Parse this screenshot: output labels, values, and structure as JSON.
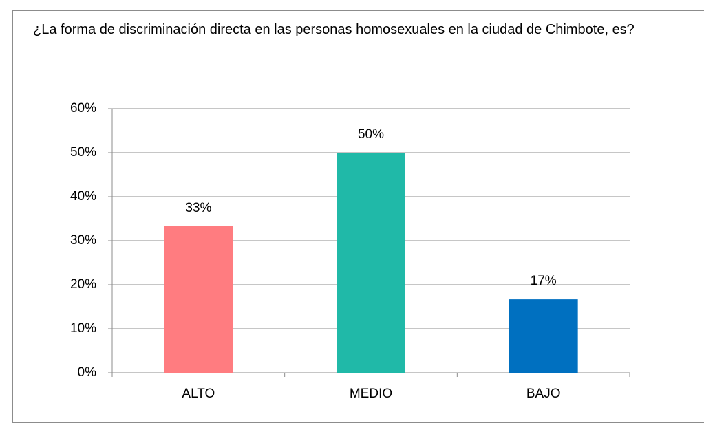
{
  "chart_data": {
    "type": "bar",
    "title": "¿La forma de discriminación directa en las personas homosexuales en la ciudad de Chimbote, es?",
    "categories": [
      "ALTO",
      "MEDIO",
      "BAJO"
    ],
    "values": [
      33.3,
      50,
      16.7
    ],
    "value_labels": [
      "33%",
      "50%",
      "17%"
    ],
    "colors": [
      "#ff7c80",
      "#20b9a8",
      "#0070c0"
    ],
    "ylim": [
      0,
      60
    ],
    "yticks": [
      {
        "value": 0,
        "label": "0%"
      },
      {
        "value": 10,
        "label": "10%"
      },
      {
        "value": 20,
        "label": "20%"
      },
      {
        "value": 30,
        "label": "30%"
      },
      {
        "value": 40,
        "label": "40%"
      },
      {
        "value": 50,
        "label": "50%"
      },
      {
        "value": 60,
        "label": "60%"
      }
    ],
    "grid": true
  }
}
